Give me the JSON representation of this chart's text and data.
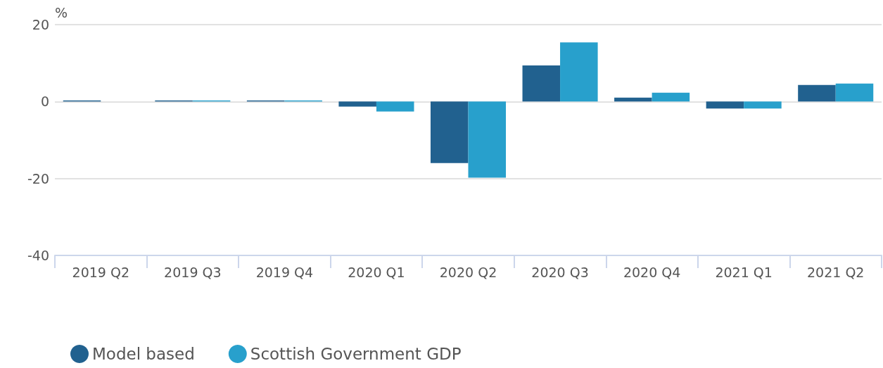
{
  "chart_data": {
    "type": "bar",
    "ylabel": "%",
    "categories": [
      "2019 Q2",
      "2019 Q3",
      "2019 Q4",
      "2020 Q1",
      "2020 Q2",
      "2020 Q3",
      "2020 Q4",
      "2021 Q1",
      "2021 Q2"
    ],
    "series": [
      {
        "name": "Model based",
        "color": "#21618f",
        "values": [
          0.3,
          0.3,
          0.3,
          -1.3,
          -16.0,
          9.4,
          1.0,
          -1.8,
          4.3
        ]
      },
      {
        "name": "Scottish Government GDP",
        "color": "#28a0cc",
        "values": [
          null,
          0.3,
          0.3,
          -2.6,
          -19.8,
          15.4,
          2.3,
          -1.8,
          4.7
        ]
      }
    ],
    "ylim": [
      -40,
      20
    ],
    "yticks": [
      -40,
      -20,
      0,
      20
    ],
    "grid": "y",
    "legend": "bottom left"
  }
}
